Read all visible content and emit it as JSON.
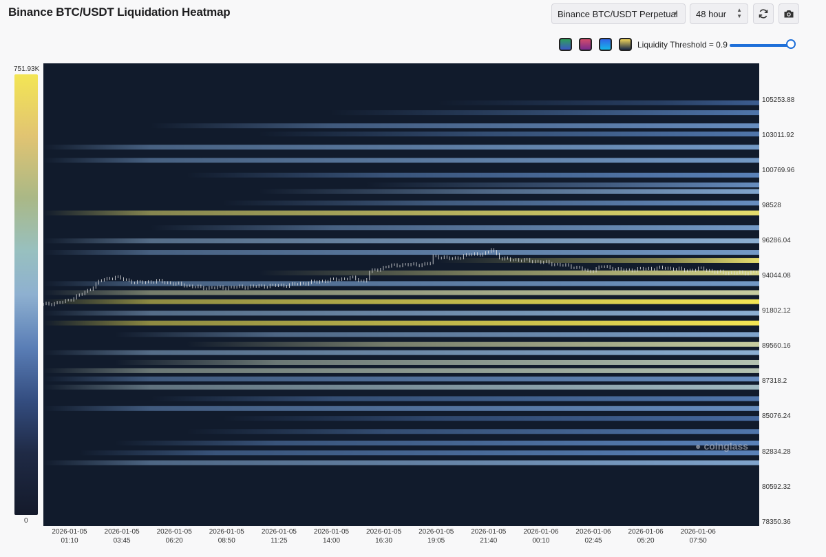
{
  "header": {
    "title": "Binance BTC/USDT Liquidation Heatmap",
    "symbol_select": "Binance BTC/USDT Perpetual",
    "range_select": "48 hour",
    "refresh_icon": "refresh-icon",
    "camera_icon": "camera-icon"
  },
  "controls": {
    "threshold_label": "Liquidity Threshold = 0.9",
    "threshold_value": 0.9,
    "themes": [
      {
        "name": "green-theme",
        "from": "#2e9e5c",
        "to": "#3b57c4"
      },
      {
        "name": "pink-theme",
        "from": "#d24c6c",
        "to": "#7a2a8c"
      },
      {
        "name": "blue-theme",
        "from": "#2f65e8",
        "to": "#16b6e8"
      },
      {
        "name": "yellow-theme",
        "from": "#f0d45a",
        "to": "#1c2b48"
      }
    ]
  },
  "legend": {
    "max_label": "751.93K",
    "min_label": "0"
  },
  "watermark": "coinglass",
  "chart_data": {
    "type": "heatmap",
    "title": "Binance BTC/USDT Liquidation Heatmap",
    "y_ticks": [
      "105253.88",
      "103011.92",
      "100769.96",
      "98528",
      "96286.04",
      "94044.08",
      "91802.12",
      "89560.16",
      "87318.2",
      "85076.24",
      "82834.28",
      "80592.32",
      "78350.36"
    ],
    "ylim": [
      78350.36,
      106500
    ],
    "x_ticks": [
      [
        "2026-01-05",
        "01:10"
      ],
      [
        "2026-01-05",
        "03:45"
      ],
      [
        "2026-01-05",
        "06:20"
      ],
      [
        "2026-01-05",
        "08:50"
      ],
      [
        "2026-01-05",
        "11:25"
      ],
      [
        "2026-01-05",
        "14:00"
      ],
      [
        "2026-01-05",
        "16:30"
      ],
      [
        "2026-01-05",
        "19:05"
      ],
      [
        "2026-01-05",
        "21:40"
      ],
      [
        "2026-01-06",
        "00:10"
      ],
      [
        "2026-01-06",
        "02:45"
      ],
      [
        "2026-01-06",
        "05:20"
      ],
      [
        "2026-01-06",
        "07:50"
      ]
    ],
    "bands": [
      {
        "price": 104100,
        "intensity": 0.35,
        "start": 0.55
      },
      {
        "price": 103500,
        "intensity": 0.45,
        "start": 0.4
      },
      {
        "price": 102700,
        "intensity": 0.55,
        "start": 0.15
      },
      {
        "price": 102200,
        "intensity": 0.45,
        "start": 0.3
      },
      {
        "price": 101400,
        "intensity": 0.6,
        "start": 0.0
      },
      {
        "price": 100600,
        "intensity": 0.6,
        "start": 0.0
      },
      {
        "price": 99700,
        "intensity": 0.5,
        "start": 0.2
      },
      {
        "price": 99100,
        "intensity": 0.55,
        "start": 0.45
      },
      {
        "price": 98700,
        "intensity": 0.65,
        "start": 0.3
      },
      {
        "price": 98000,
        "intensity": 0.55,
        "start": 0.25
      },
      {
        "price": 97400,
        "intensity": 0.95,
        "start": 0.0
      },
      {
        "price": 96500,
        "intensity": 0.6,
        "start": 0.15
      },
      {
        "price": 95700,
        "intensity": 0.7,
        "start": 0.0
      },
      {
        "price": 95000,
        "intensity": 0.6,
        "start": 0.0
      },
      {
        "price": 94500,
        "intensity": 0.95,
        "start": 0.55
      },
      {
        "price": 93750,
        "intensity": 0.9,
        "start": 0.3
      },
      {
        "price": 93100,
        "intensity": 0.6,
        "start": 0.0
      },
      {
        "price": 92550,
        "intensity": 0.85,
        "start": 0.0
      },
      {
        "price": 92000,
        "intensity": 1.0,
        "start": 0.0
      },
      {
        "price": 91300,
        "intensity": 0.7,
        "start": 0.0
      },
      {
        "price": 90700,
        "intensity": 1.0,
        "start": 0.0
      },
      {
        "price": 90000,
        "intensity": 0.65,
        "start": 0.1
      },
      {
        "price": 89400,
        "intensity": 0.85,
        "start": 0.2
      },
      {
        "price": 88900,
        "intensity": 0.7,
        "start": 0.0
      },
      {
        "price": 88300,
        "intensity": 0.8,
        "start": 0.1
      },
      {
        "price": 87800,
        "intensity": 0.8,
        "start": 0.0
      },
      {
        "price": 87300,
        "intensity": 0.55,
        "start": 0.0
      },
      {
        "price": 86800,
        "intensity": 0.75,
        "start": 0.0
      },
      {
        "price": 86100,
        "intensity": 0.45,
        "start": 0.15
      },
      {
        "price": 85500,
        "intensity": 0.55,
        "start": 0.0
      },
      {
        "price": 84900,
        "intensity": 0.4,
        "start": 0.25
      },
      {
        "price": 84100,
        "intensity": 0.45,
        "start": 0.2
      },
      {
        "price": 83400,
        "intensity": 0.5,
        "start": 0.1
      },
      {
        "price": 82800,
        "intensity": 0.5,
        "start": 0.05
      },
      {
        "price": 82200,
        "intensity": 0.65,
        "start": 0.0
      }
    ],
    "price_line": [
      [
        0.0,
        91820
      ],
      [
        0.03,
        92000
      ],
      [
        0.06,
        92600
      ],
      [
        0.08,
        93300
      ],
      [
        0.1,
        93500
      ],
      [
        0.13,
        93150
      ],
      [
        0.16,
        93250
      ],
      [
        0.19,
        93050
      ],
      [
        0.22,
        92850
      ],
      [
        0.25,
        92850
      ],
      [
        0.28,
        92900
      ],
      [
        0.31,
        92950
      ],
      [
        0.34,
        93000
      ],
      [
        0.37,
        93150
      ],
      [
        0.4,
        93300
      ],
      [
        0.43,
        93450
      ],
      [
        0.45,
        93200
      ],
      [
        0.455,
        93800
      ],
      [
        0.48,
        94150
      ],
      [
        0.5,
        94250
      ],
      [
        0.52,
        94250
      ],
      [
        0.54,
        94300
      ],
      [
        0.545,
        94800
      ],
      [
        0.57,
        94600
      ],
      [
        0.6,
        94900
      ],
      [
        0.62,
        94900
      ],
      [
        0.625,
        95250
      ],
      [
        0.64,
        94600
      ],
      [
        0.66,
        94550
      ],
      [
        0.69,
        94450
      ],
      [
        0.72,
        94250
      ],
      [
        0.75,
        94050
      ],
      [
        0.76,
        93800
      ],
      [
        0.78,
        94150
      ],
      [
        0.81,
        93900
      ],
      [
        0.84,
        94000
      ],
      [
        0.87,
        94050
      ],
      [
        0.9,
        93900
      ],
      [
        0.92,
        94000
      ],
      [
        0.94,
        93800
      ],
      [
        0.96,
        93750
      ],
      [
        0.98,
        93750
      ],
      [
        1.0,
        93850
      ]
    ]
  }
}
